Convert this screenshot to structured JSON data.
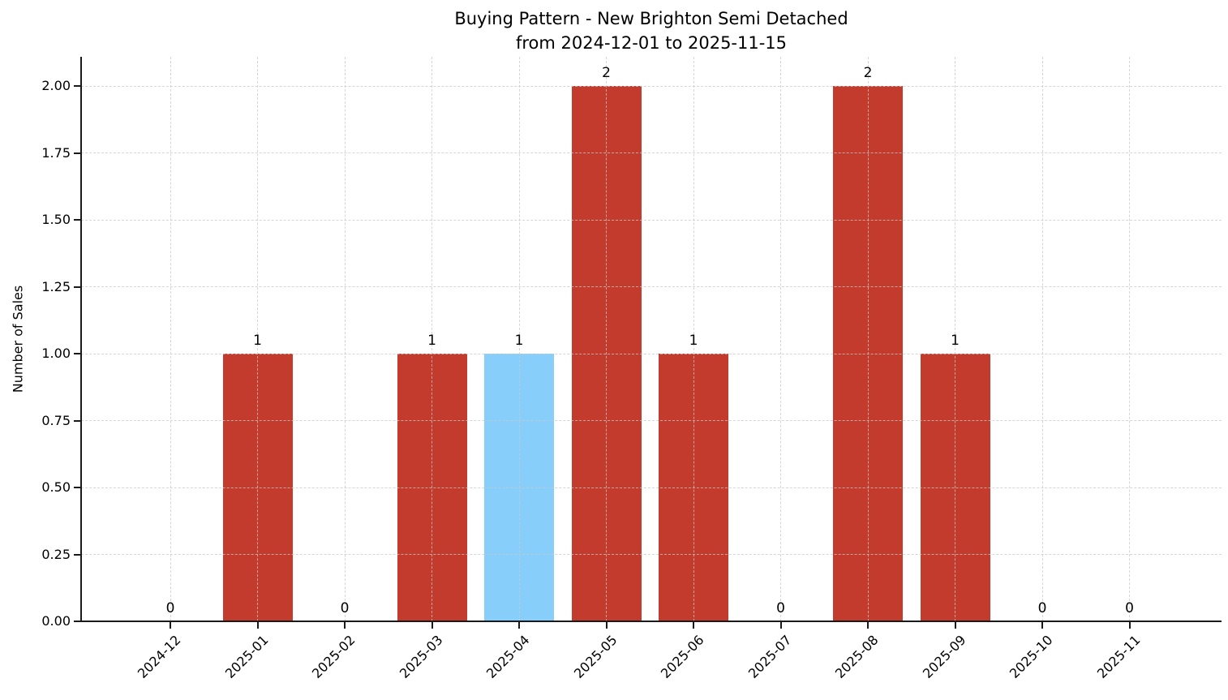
{
  "title": {
    "line1": "Buying Pattern - New Brighton Semi Detached",
    "line2": "from 2024-12-01 to 2025-11-15"
  },
  "chart_data": {
    "type": "bar",
    "title": "Buying Pattern - New Brighton Semi Detached\nfrom 2024-12-01 to 2025-11-15",
    "xlabel": "",
    "ylabel": "Number of Sales",
    "categories": [
      "2024-12",
      "2025-01",
      "2025-02",
      "2025-03",
      "2025-04",
      "2025-05",
      "2025-06",
      "2025-07",
      "2025-08",
      "2025-09",
      "2025-10",
      "2025-11"
    ],
    "values": [
      0,
      1,
      0,
      1,
      1,
      2,
      1,
      0,
      2,
      1,
      0,
      0
    ],
    "bar_value_labels": [
      "0",
      "1",
      "0",
      "1",
      "1",
      "2",
      "1",
      "0",
      "2",
      "1",
      "0",
      "0"
    ],
    "highlight_category": "2025-04",
    "ylim": [
      0,
      2.11
    ],
    "yticks": [
      0,
      0.25,
      0.5,
      0.75,
      1,
      1.25,
      1.5,
      1.75,
      2
    ],
    "ytick_labels": [
      "0.00",
      "0.25",
      "0.50",
      "0.75",
      "1.00",
      "1.25",
      "1.50",
      "1.75",
      "2.00"
    ],
    "xtick_rotation_deg": 45,
    "grid": true,
    "grid_style": "dashed",
    "legend": false,
    "colors": {
      "bar": "#c23b2c",
      "highlight_bar": "#87cefa",
      "grid": "#c9c9c9",
      "axis": "#1a1a1a",
      "text": "#000000",
      "background": "#ffffff"
    }
  }
}
